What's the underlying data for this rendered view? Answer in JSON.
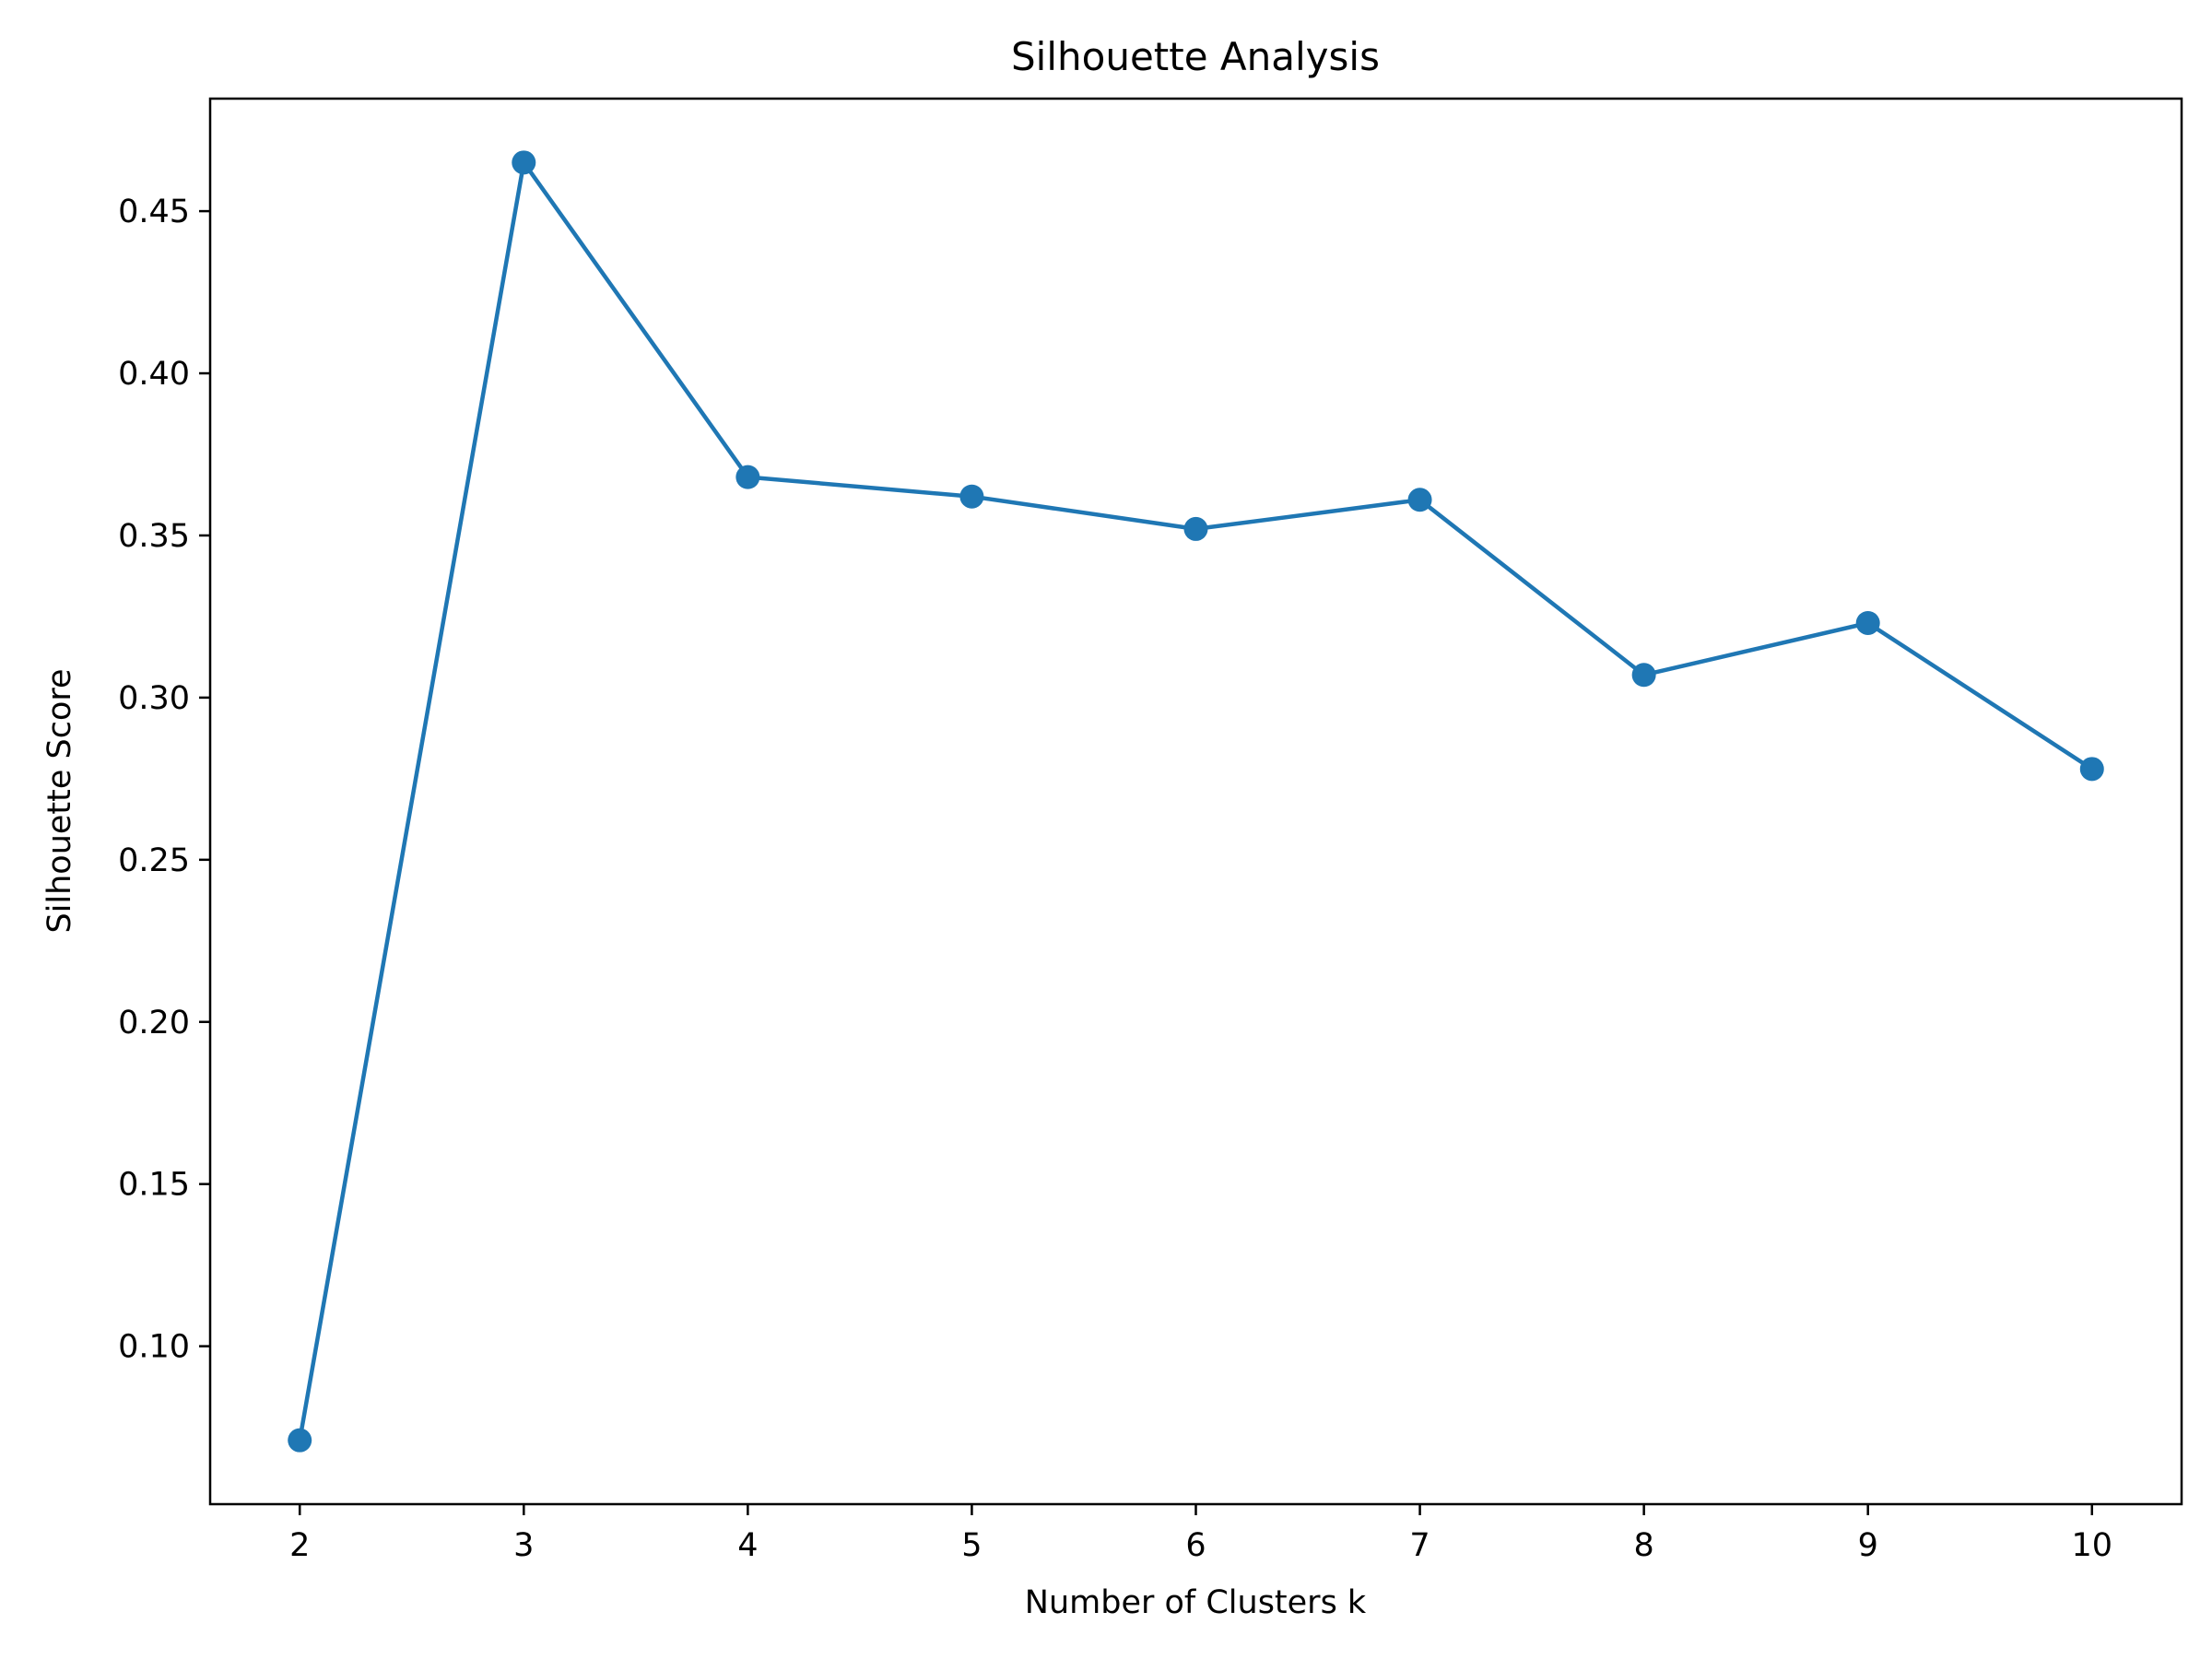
{
  "chart_data": {
    "type": "line",
    "title": "Silhouette Analysis",
    "xlabel": "Number of Clusters k",
    "ylabel": "Silhouette Score",
    "x": [
      2,
      3,
      4,
      5,
      6,
      7,
      8,
      9,
      10
    ],
    "series": [
      {
        "values": [
          0.071,
          0.465,
          0.368,
          0.362,
          0.352,
          0.361,
          0.307,
          0.323,
          0.278
        ],
        "color": "#1f77b4",
        "marker": "circle"
      }
    ],
    "xlim": [
      1.6,
      10.4
    ],
    "ylim": [
      0.0513,
      0.4847
    ],
    "xticks": [
      2,
      3,
      4,
      5,
      6,
      7,
      8,
      9,
      10
    ],
    "xtick_labels": [
      "2",
      "3",
      "4",
      "5",
      "6",
      "7",
      "8",
      "9",
      "10"
    ],
    "yticks": [
      0.1,
      0.15,
      0.2,
      0.25,
      0.3,
      0.35,
      0.4,
      0.45
    ],
    "ytick_labels": [
      "0.10",
      "0.15",
      "0.20",
      "0.25",
      "0.30",
      "0.35",
      "0.40",
      "0.45"
    ],
    "grid": false,
    "legend": "none"
  }
}
